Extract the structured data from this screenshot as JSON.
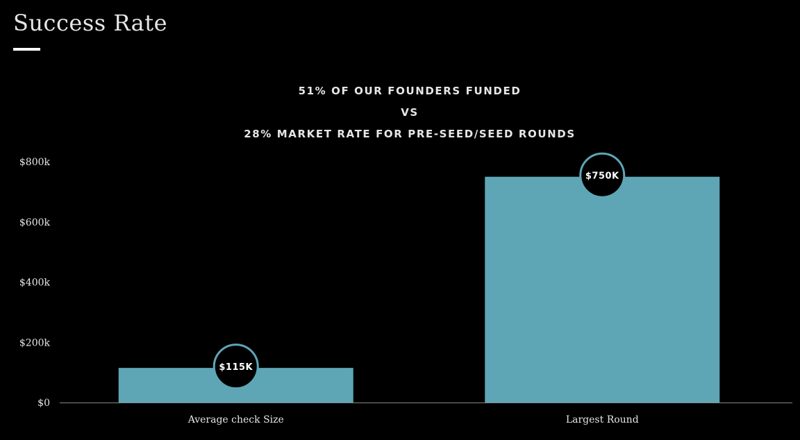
{
  "page": {
    "title": "Success Rate"
  },
  "headline": {
    "line1": "51% OF OUR FOUNDERS FUNDED",
    "line2": "VS",
    "line3": "28% MARKET RATE FOR PRE-SEED/SEED ROUNDS"
  },
  "colors": {
    "background": "#000000",
    "bar": "#5ea6b6",
    "bubble_fill": "#000000",
    "bubble_stroke": "#5ea6b6",
    "text": "#e6e6e6",
    "axis": "#888888"
  },
  "chart_data": {
    "type": "bar",
    "categories": [
      "Average check Size",
      "Largest Round"
    ],
    "values": [
      115000,
      750000
    ],
    "data_labels": [
      "$115K",
      "$750K"
    ],
    "ylim": [
      0,
      800000
    ],
    "yticks": [
      0,
      200000,
      400000,
      600000,
      800000
    ],
    "ytick_labels": [
      "$0",
      "$200k",
      "$400k",
      "$600k",
      "$800k"
    ],
    "grid": false,
    "legend": "none"
  }
}
